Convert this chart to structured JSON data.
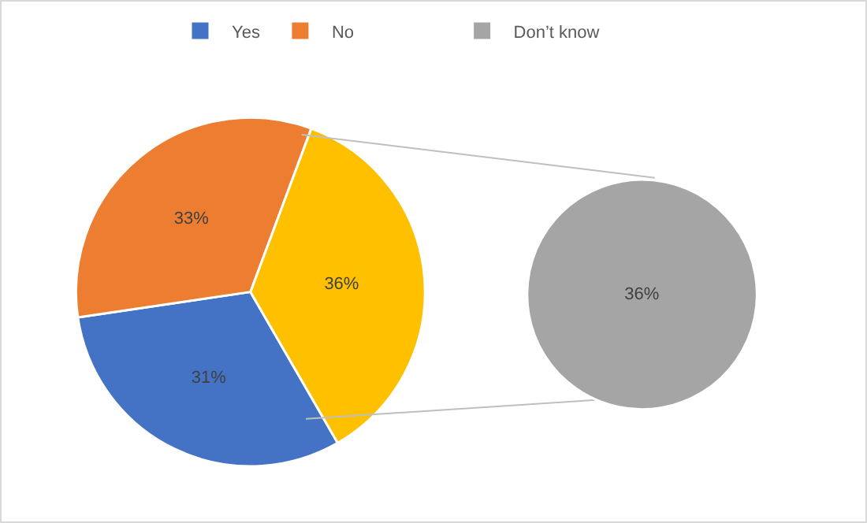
{
  "chart_data": [
    {
      "type": "pie",
      "legend": "top",
      "categories": [
        "Yes",
        "No",
        null
      ],
      "values": [
        31,
        33,
        36
      ],
      "colors": [
        "#4472c4",
        "#ed7d31",
        "#ffc000"
      ],
      "value_labels": [
        "31%",
        "33%",
        "36%"
      ]
    },
    {
      "type": "pie",
      "legend": "top",
      "categories": [
        "Don’t know"
      ],
      "values": [
        36
      ],
      "colors": [
        "#a5a5a5"
      ],
      "value_labels": [
        "36%"
      ]
    }
  ]
}
